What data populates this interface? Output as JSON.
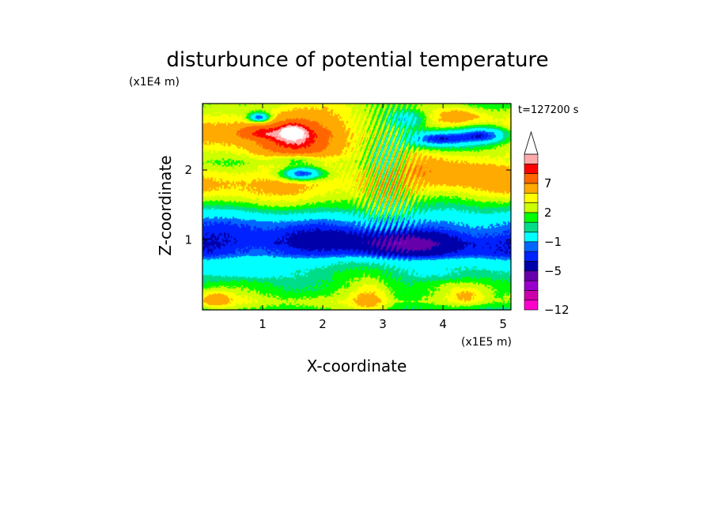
{
  "chart_data": {
    "type": "heatmap",
    "title": "disturbunce of potential temperature",
    "time_label": "t=127200 s",
    "xlabel": "X-coordinate",
    "ylabel": "Z-coordinate",
    "x_scale_label": "(x1E5 m)",
    "y_scale_label": "(x1E4 m)",
    "xlim": [
      0,
      5.13
    ],
    "ylim": [
      0,
      2.95
    ],
    "x_ticks": [
      {
        "value": 1,
        "label": "1"
      },
      {
        "value": 2,
        "label": "2"
      },
      {
        "value": 3,
        "label": "3"
      },
      {
        "value": 4,
        "label": "4"
      },
      {
        "value": 5,
        "label": "5"
      }
    ],
    "y_ticks": [
      {
        "value": 1,
        "label": "1"
      },
      {
        "value": 2,
        "label": "2"
      }
    ],
    "colorbar": {
      "levels": [
        -12,
        -11,
        -9,
        -7,
        -5,
        -4,
        -3,
        -1,
        0,
        1,
        2,
        3,
        5,
        7,
        8,
        9
      ],
      "colors": [
        "#ff00cc",
        "#cc00aa",
        "#9900cc",
        "#6600aa",
        "#0000aa",
        "#0022ff",
        "#0066ff",
        "#00ffff",
        "#00dd88",
        "#00ff00",
        "#ccff00",
        "#ffff00",
        "#ffaa00",
        "#ff6600",
        "#ff0000",
        "#ffaaaa",
        "#ffffff"
      ],
      "extend_top": true,
      "tick_labels": [
        {
          "value": -12,
          "label": "−12"
        },
        {
          "value": -5,
          "label": "−5"
        },
        {
          "value": -1,
          "label": "−1"
        },
        {
          "value": 2,
          "label": "2"
        },
        {
          "value": 7,
          "label": "7"
        }
      ]
    },
    "field": {
      "layers": [
        {
          "z": 0.0,
          "value": 0.2
        },
        {
          "z": 0.12,
          "value": 1.5
        },
        {
          "z": 0.25,
          "value": 0.8
        },
        {
          "z": 0.4,
          "value": 0.3
        },
        {
          "z": 0.55,
          "value": -0.5
        },
        {
          "z": 0.7,
          "value": -2.0
        },
        {
          "z": 0.8,
          "value": -4.5
        },
        {
          "z": 0.95,
          "value": -5.3
        },
        {
          "z": 1.1,
          "value": -4.6
        },
        {
          "z": 1.25,
          "value": -3.2
        },
        {
          "z": 1.38,
          "value": -1.2
        },
        {
          "z": 1.5,
          "value": 0.5
        },
        {
          "z": 1.65,
          "value": 2.3
        },
        {
          "z": 1.8,
          "value": 3.3
        },
        {
          "z": 1.95,
          "value": 2.5
        },
        {
          "z": 2.1,
          "value": 1.2
        },
        {
          "z": 2.3,
          "value": 1.8
        },
        {
          "z": 2.5,
          "value": 2.8
        },
        {
          "z": 2.7,
          "value": 2.2
        },
        {
          "z": 2.95,
          "value": 1.0
        }
      ],
      "features": [
        {
          "x": 1.5,
          "z": 2.45,
          "sx": 0.75,
          "sz": 0.4,
          "value": 5.0
        },
        {
          "x": 1.5,
          "z": 2.55,
          "sx": 0.22,
          "sz": 0.12,
          "value": 3.5
        },
        {
          "x": 0.9,
          "z": 2.55,
          "sx": 0.35,
          "sz": 0.1,
          "value": 2.5
        },
        {
          "x": 1.65,
          "z": 1.95,
          "sx": 0.35,
          "sz": 0.1,
          "value": -7.5
        },
        {
          "x": 0.95,
          "z": 2.75,
          "sx": 0.18,
          "sz": 0.07,
          "value": -6.5
        },
        {
          "x": 1.55,
          "z": 2.15,
          "sx": 0.45,
          "sz": 0.08,
          "value": -3.5
        },
        {
          "x": 3.9,
          "z": 2.45,
          "sx": 0.55,
          "sz": 0.12,
          "value": -7.0
        },
        {
          "x": 4.7,
          "z": 2.5,
          "sx": 0.45,
          "sz": 0.12,
          "value": -6.5
        },
        {
          "x": 3.4,
          "z": 2.72,
          "sx": 0.35,
          "sz": 0.15,
          "value": -4.5
        },
        {
          "x": 4.1,
          "z": 2.05,
          "sx": 1.0,
          "sz": 0.18,
          "value": 2.5
        },
        {
          "x": 4.3,
          "z": 2.78,
          "sx": 0.35,
          "sz": 0.1,
          "value": 2.2
        },
        {
          "x": 3.1,
          "z": 2.1,
          "sx": 0.3,
          "sz": 0.3,
          "value": -2.0
        },
        {
          "x": 3.3,
          "z": 0.95,
          "sx": 0.7,
          "sz": 0.15,
          "value": -2.5
        },
        {
          "x": 2.8,
          "z": 0.15,
          "sx": 0.35,
          "sz": 0.25,
          "value": 3.0
        },
        {
          "x": 0.2,
          "z": 0.15,
          "sx": 0.25,
          "sz": 0.12,
          "value": 2.5
        },
        {
          "x": 4.4,
          "z": 0.2,
          "sx": 0.3,
          "sz": 0.12,
          "value": 2.0
        },
        {
          "x": 0.8,
          "z": 0.55,
          "sx": 0.5,
          "sz": 0.1,
          "value": -1.8
        },
        {
          "x": 4.0,
          "z": 0.5,
          "sx": 0.6,
          "sz": 0.1,
          "value": -1.5
        }
      ],
      "wave": {
        "x": 3.1,
        "z": 1.9,
        "sx": 0.45,
        "sz": 0.9,
        "amplitude": 3.5,
        "wavelength": 0.09,
        "tilt": 0.45
      }
    }
  }
}
